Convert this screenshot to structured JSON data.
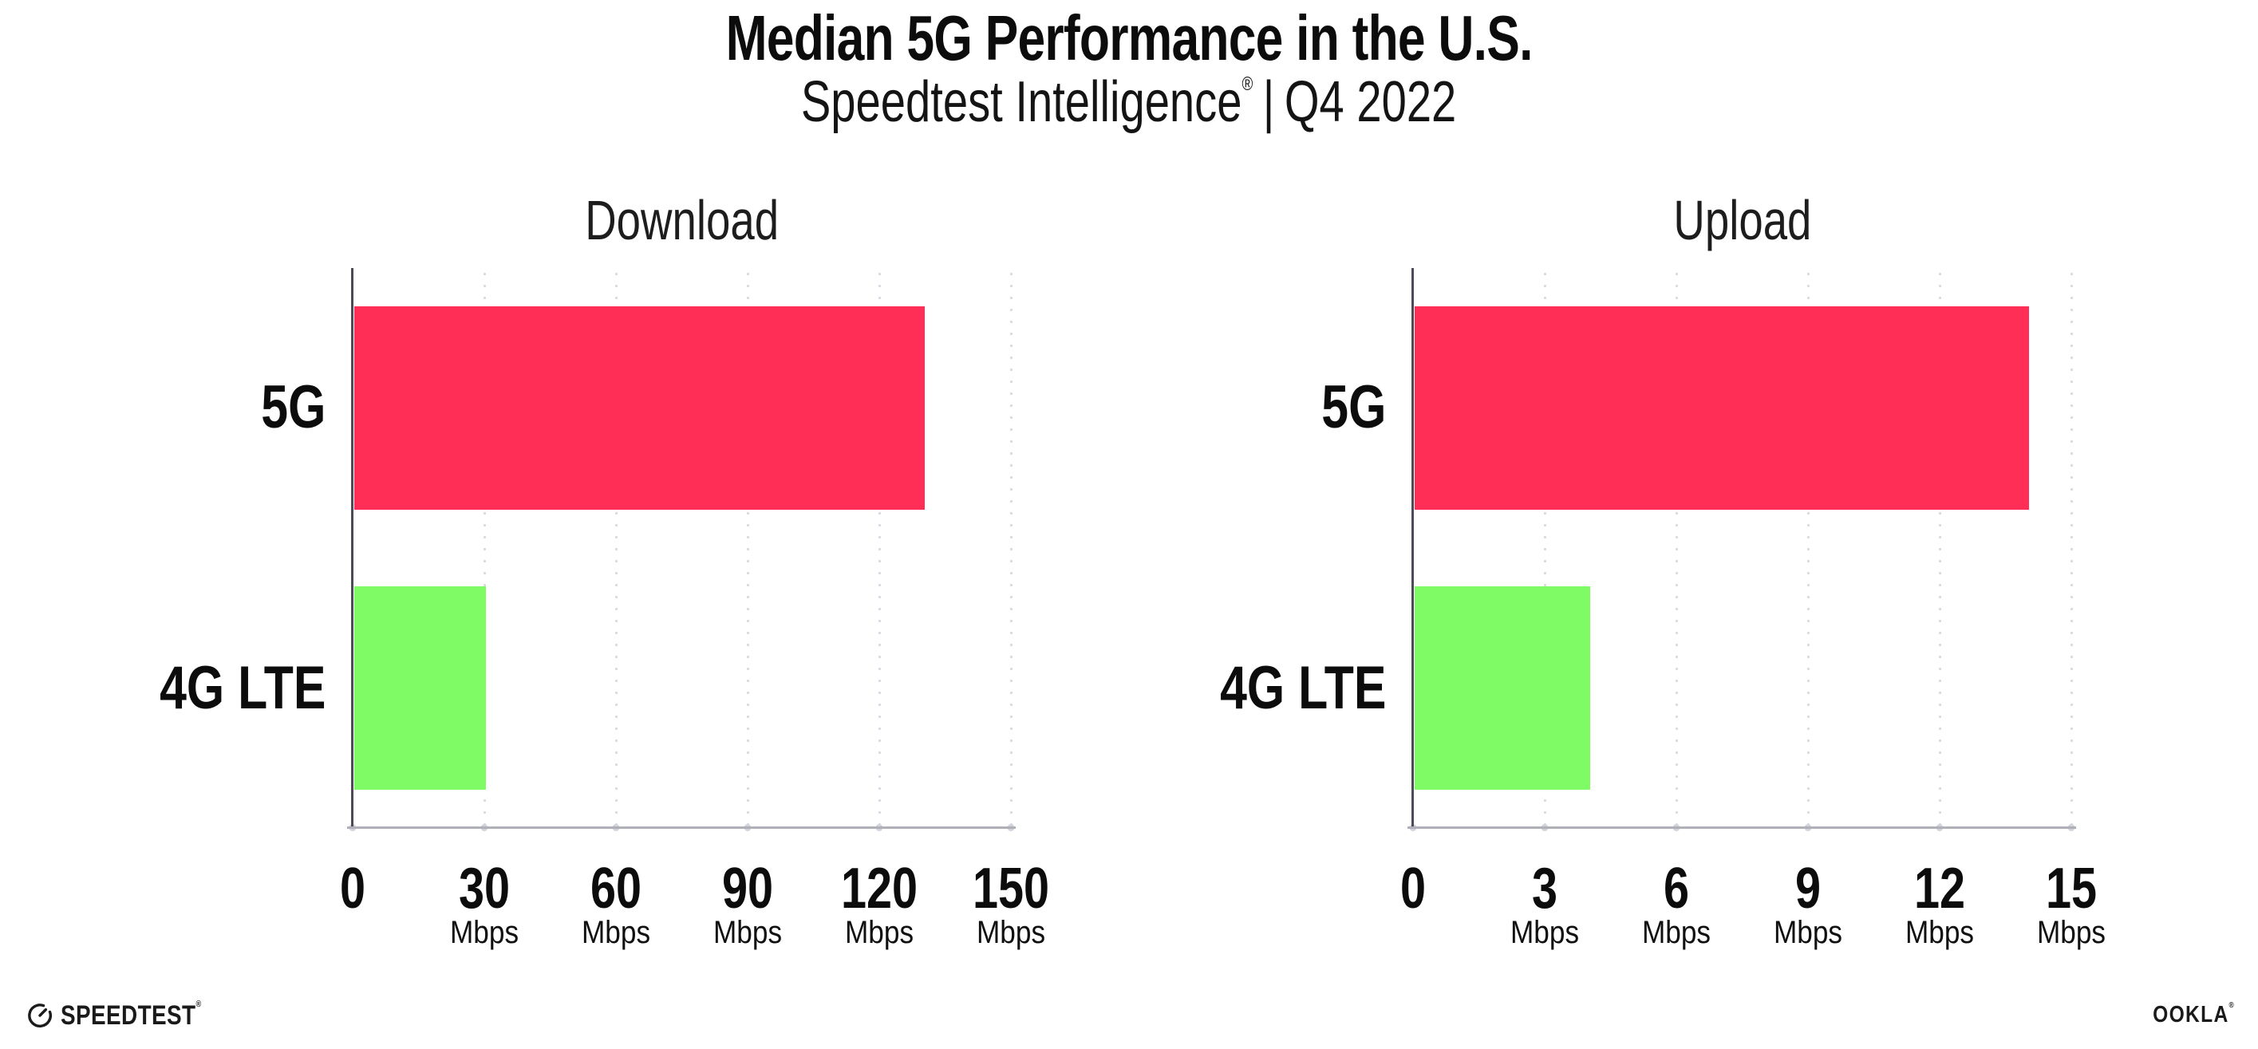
{
  "header": {
    "title": "Median 5G Performance in the U.S.",
    "subtitle": {
      "brand": "Speedtest Intelligence",
      "registered": "®",
      "separator": "|",
      "period": "Q4 2022"
    }
  },
  "chart_data": [
    {
      "type": "bar",
      "orientation": "horizontal",
      "title": "Download",
      "categories": [
        "5G",
        "4G LTE"
      ],
      "values": [
        130,
        30
      ],
      "unit": "Mbps",
      "xlim": [
        0,
        150
      ],
      "xticks": [
        0,
        30,
        60,
        90,
        120,
        150
      ],
      "bar_colors": [
        "#FF2E56",
        "#7FFB66"
      ],
      "grid": "dotted-vertical",
      "legend": "none"
    },
    {
      "type": "bar",
      "orientation": "horizontal",
      "title": "Upload",
      "categories": [
        "5G",
        "4G LTE"
      ],
      "values": [
        14,
        4
      ],
      "unit": "Mbps",
      "xlim": [
        0,
        15
      ],
      "xticks": [
        0,
        3,
        6,
        9,
        12,
        15
      ],
      "bar_colors": [
        "#FF2E56",
        "#7FFB66"
      ],
      "grid": "dotted-vertical",
      "legend": "none"
    }
  ],
  "colors": {
    "bar_5g": "#FF2E56",
    "bar_4g_lte": "#7FFB66",
    "grid_dot": "#D9D9E3",
    "x_axis": "#B0B0B8",
    "y_axis": "#4F4A57",
    "text": "#111111",
    "background": "#FFFFFF"
  },
  "footer": {
    "speedtest": {
      "label": "SPEEDTEST",
      "mark": "®"
    },
    "ookla": {
      "label": "OOKLA",
      "mark": "®"
    }
  }
}
